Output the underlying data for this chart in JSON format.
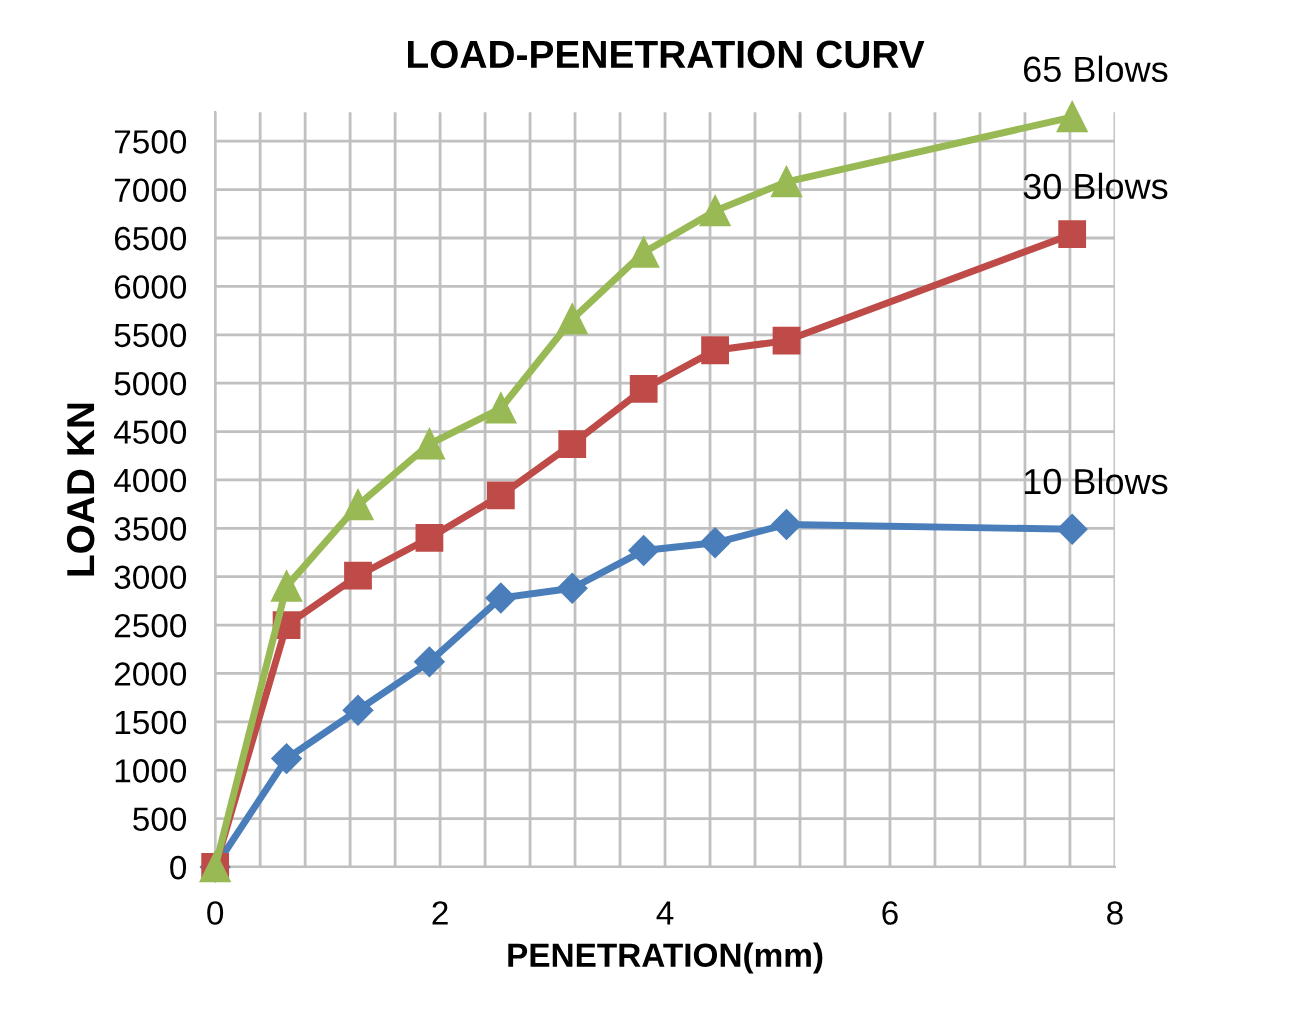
{
  "chart_data": {
    "type": "line",
    "title": "LOAD-PENETRATION CURV",
    "xlabel": "PENETRATION(mm)",
    "ylabel": "LOAD KN",
    "x": [
      0,
      0.635,
      1.27,
      1.905,
      2.54,
      3.175,
      3.81,
      4.445,
      5.08,
      7.62
    ],
    "series": [
      {
        "name": "10 Blows",
        "color": "#4a7ebb",
        "marker": "diamond",
        "values": [
          0,
          1120,
          1620,
          2120,
          2780,
          2880,
          3270,
          3350,
          3540,
          3490
        ]
      },
      {
        "name": "30 Blows",
        "color": "#be4b48",
        "marker": "square",
        "values": [
          0,
          2500,
          3010,
          3400,
          3840,
          4370,
          4940,
          5340,
          5440,
          6540
        ]
      },
      {
        "name": "65 Blows",
        "color": "#98b954",
        "marker": "triangle",
        "values": [
          0,
          2900,
          3740,
          4370,
          4740,
          5660,
          6350,
          6780,
          7080,
          7750
        ]
      }
    ],
    "xlim": [
      0,
      8
    ],
    "xticks": [
      0,
      {
        "value": 0.4,
        "label": null
      },
      {
        "value": 0.8,
        "label": null
      },
      {
        "value": 1.2,
        "label": null
      },
      {
        "value": 1.6,
        "label": null
      },
      2,
      {
        "value": 2.4,
        "label": null
      },
      {
        "value": 2.8,
        "label": null
      },
      {
        "value": 3.2,
        "label": null
      },
      {
        "value": 3.6,
        "label": null
      },
      4,
      {
        "value": 4.4,
        "label": null
      },
      {
        "value": 4.8,
        "label": null
      },
      {
        "value": 5.2,
        "label": null
      },
      {
        "value": 5.6,
        "label": null
      },
      6,
      {
        "value": 6.4,
        "label": null
      },
      {
        "value": 6.8,
        "label": null
      },
      {
        "value": 7.2,
        "label": null
      },
      {
        "value": 7.6,
        "label": null
      },
      8
    ],
    "ylim": [
      0,
      7800
    ],
    "yticks": [
      0,
      500,
      1000,
      1500,
      2000,
      2500,
      3000,
      3500,
      4000,
      4500,
      5000,
      5500,
      6000,
      6500,
      7000,
      7500
    ],
    "grid": true,
    "legend": false,
    "line_style": "solid"
  }
}
